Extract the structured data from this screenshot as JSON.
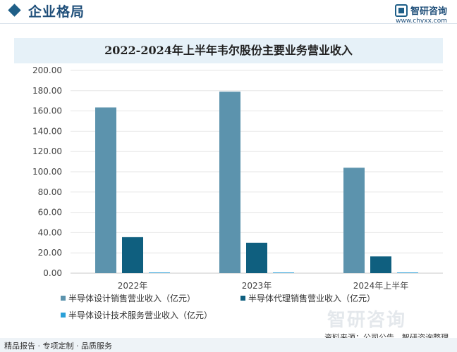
{
  "header": {
    "section_title": "企业格局",
    "brand_name": "智研咨询",
    "brand_url": "www.chyxx.com"
  },
  "footer": {
    "watermark": "智研咨询",
    "source": "资料来源：公司公告、智研咨询整理",
    "services": "精品报告 · 专项定制 · 品质服务"
  },
  "colors": {
    "series": [
      "#5c93ad",
      "#0f5f7f",
      "#2aa0d8"
    ]
  },
  "chart_data": {
    "type": "bar",
    "title": "2022-2024年上半年韦尔股份主要业务营业收入",
    "categories": [
      "2022年",
      "2023年",
      "2024年上半年"
    ],
    "series": [
      {
        "name": "半导体设计销售营业收入（亿元）",
        "values": [
          163.5,
          179.0,
          104.0
        ]
      },
      {
        "name": "半导体代理销售营业收入（亿元）",
        "values": [
          35.5,
          30.0,
          16.5
        ]
      },
      {
        "name": "半导体设计技术服务营业收入（亿元）",
        "values": [
          0.5,
          0.5,
          0.5
        ]
      }
    ],
    "ylim": [
      0,
      200
    ],
    "yticks": [
      "0.00",
      "20.00",
      "40.00",
      "60.00",
      "80.00",
      "100.00",
      "120.00",
      "140.00",
      "160.00",
      "180.00",
      "200.00"
    ],
    "grid": true,
    "legend_position": "bottom"
  }
}
